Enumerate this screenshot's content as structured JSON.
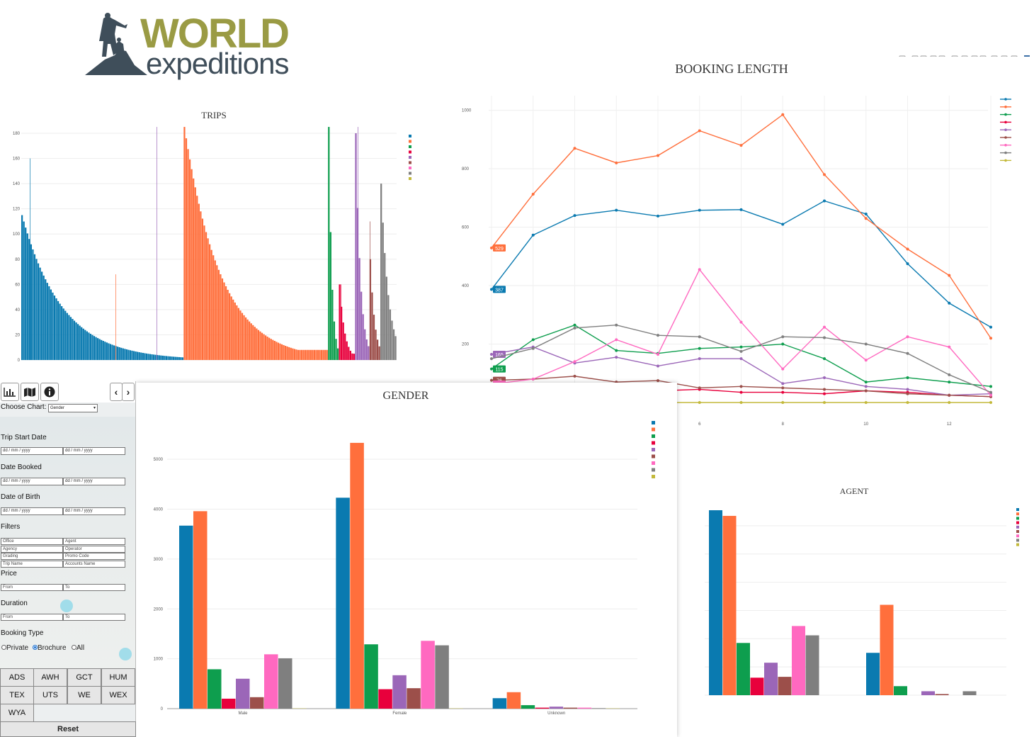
{
  "logo": {
    "word": "WORLD",
    "sub": "expeditions"
  },
  "colors": [
    "#1f77b4",
    "#ff7f0e",
    "#2ca02c",
    "#d62728",
    "#9467bd",
    "#8c564b",
    "#e377c2",
    "#7f7f7f",
    "#bcbd22"
  ],
  "palette": [
    "#0a7ab0",
    "#ff6f3c",
    "#0e9e4e",
    "#e8003c",
    "#9b66b8",
    "#9c4f4a",
    "#ff69c0",
    "#7f7f7f",
    "#c3b93a"
  ],
  "trips": {
    "title": "TRIPS"
  },
  "booking": {
    "title": "BOOKING LENGTH"
  },
  "gender": {
    "title": "GENDER"
  },
  "agent": {
    "title": "AGENT"
  },
  "sidebar": {
    "choose_chart_label": "Choose Chart:",
    "choose_chart_value": "Gender",
    "trip_start_label": "Trip Start Date",
    "date_booked_label": "Date Booked",
    "dob_label": "Date of Birth",
    "date_placeholder": "dd / mm / yyyy",
    "filters_label": "Filters",
    "filters": [
      "Office",
      "Agent",
      "Agency",
      "Operator",
      "Grading",
      "Promo Code",
      "Trip Name",
      "Accounts Name"
    ],
    "price_label": "Price",
    "duration_label": "Duration",
    "from": "From",
    "to": "To",
    "booking_type_label": "Booking Type",
    "booking_types": [
      "Private",
      "Brochure",
      "All"
    ],
    "selected_booking_type": "Brochure",
    "brands": [
      "ADS",
      "AWH",
      "GCT",
      "HUM",
      "TEX",
      "UTS",
      "WE",
      "WEX",
      "WYA"
    ],
    "reset": "Reset"
  },
  "chart_data": [
    {
      "type": "bar",
      "title": "TRIPS",
      "yticks": [
        0,
        20,
        40,
        60,
        80,
        100,
        120,
        140,
        160,
        180
      ],
      "ylim": [
        0,
        180
      ],
      "series_groups": [
        {
          "brand_index": 0,
          "count": 90,
          "start": 115,
          "decay": 0.045,
          "min": 2
        },
        {
          "brand_index": 1,
          "count": 80,
          "start": 185,
          "decay": 0.05,
          "min": 8
        },
        {
          "brand_index": 2,
          "count": 6,
          "start": 185,
          "decay": 0.6,
          "min": 8
        },
        {
          "brand_index": 3,
          "count": 9,
          "start": 60,
          "decay": 0.35,
          "min": 5
        },
        {
          "brand_index": 4,
          "count": 8,
          "start": 180,
          "decay": 0.4,
          "min": 6
        },
        {
          "brand_index": 5,
          "count": 6,
          "start": 80,
          "decay": 0.4,
          "min": 5
        },
        {
          "brand_index": 7,
          "count": 9,
          "start": 140,
          "decay": 0.25,
          "min": 4
        }
      ]
    },
    {
      "type": "line",
      "title": "BOOKING LENGTH",
      "x": [
        1,
        2,
        3,
        4,
        5,
        6,
        7,
        8,
        9,
        10,
        11,
        12,
        13
      ],
      "xticks": [
        6,
        8,
        10,
        12
      ],
      "yticks": [
        200,
        400,
        600,
        800,
        1000
      ],
      "ylim": [
        0,
        1050
      ],
      "series": [
        {
          "color_index": 0,
          "values": [
            387,
            573,
            640,
            658,
            638,
            658,
            660,
            610,
            690,
            645,
            475,
            340,
            258
          ],
          "label": "387"
        },
        {
          "color_index": 1,
          "values": [
            529,
            713,
            870,
            820,
            845,
            930,
            880,
            985,
            780,
            630,
            525,
            435,
            220
          ],
          "label": "529"
        },
        {
          "color_index": 2,
          "values": [
            115,
            215,
            265,
            178,
            168,
            185,
            190,
            200,
            150,
            70,
            85,
            70,
            55
          ],
          "label": "115"
        },
        {
          "color_index": 3,
          "values": [
            30,
            35,
            40,
            40,
            40,
            45,
            35,
            35,
            30,
            40,
            35,
            25,
            20
          ],
          "label": ""
        },
        {
          "color_index": 4,
          "values": [
            165,
            190,
            135,
            155,
            125,
            150,
            150,
            65,
            85,
            55,
            45,
            25,
            30
          ],
          "label": "165"
        },
        {
          "color_index": 5,
          "values": [
            76,
            80,
            90,
            70,
            75,
            50,
            55,
            50,
            45,
            40,
            30,
            25,
            20
          ],
          "label": "76"
        },
        {
          "color_index": 6,
          "values": [
            63,
            80,
            140,
            215,
            165,
            455,
            275,
            115,
            258,
            145,
            225,
            190,
            25
          ],
          "label": "63"
        },
        {
          "color_index": 7,
          "values": [
            150,
            185,
            255,
            265,
            230,
            225,
            175,
            225,
            222,
            200,
            168,
            95,
            35
          ],
          "label": ""
        },
        {
          "color_index": 8,
          "values": [
            0,
            0,
            0,
            0,
            0,
            0,
            0,
            0,
            0,
            0,
            0,
            0,
            0
          ],
          "label": ""
        }
      ]
    },
    {
      "type": "bar",
      "title": "GENDER",
      "categories": [
        "Male",
        "Female",
        "Unknown"
      ],
      "yticks": [
        0,
        1000,
        2000,
        3000,
        4000,
        5000
      ],
      "ylim": [
        0,
        5400
      ],
      "series_values": [
        [
          3670,
          4230,
          210
        ],
        [
          3960,
          5330,
          330
        ],
        [
          790,
          1290,
          70
        ],
        [
          200,
          390,
          20
        ],
        [
          600,
          670,
          40
        ],
        [
          230,
          410,
          20
        ],
        [
          1090,
          1360,
          20
        ],
        [
          1010,
          1270,
          10
        ],
        [
          5,
          5,
          5
        ]
      ]
    },
    {
      "type": "bar",
      "title": "AGENT",
      "yticks": [
        0,
        100,
        200,
        300,
        400,
        500,
        600
      ],
      "ylim": [
        0,
        660
      ],
      "series_values": [
        [
          655,
          150
        ],
        [
          635,
          320
        ],
        [
          185,
          32
        ],
        [
          62,
          0
        ],
        [
          115,
          14
        ],
        [
          65,
          4
        ],
        [
          245,
          0
        ],
        [
          212,
          14
        ]
      ]
    }
  ]
}
